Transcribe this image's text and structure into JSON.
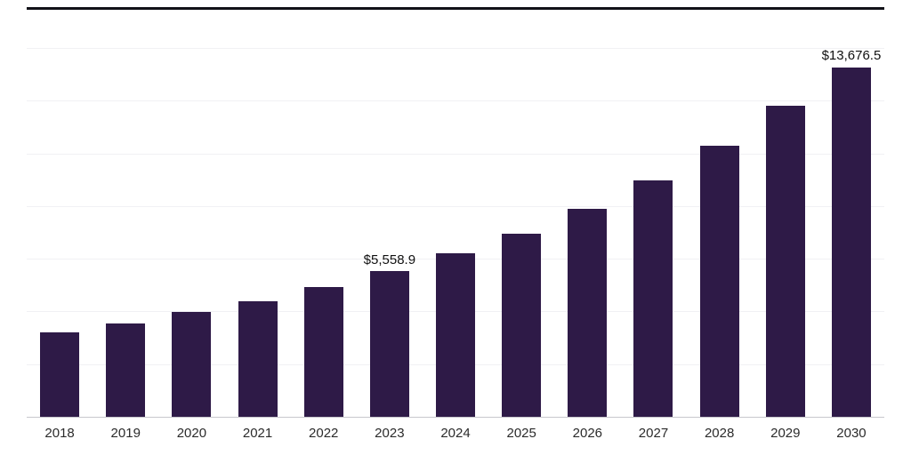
{
  "chart_data": {
    "type": "bar",
    "title": "",
    "xlabel": "",
    "ylabel": "",
    "categories": [
      "2018",
      "2019",
      "2020",
      "2021",
      "2022",
      "2023",
      "2024",
      "2025",
      "2026",
      "2027",
      "2028",
      "2029",
      "2030"
    ],
    "values": [
      3230,
      3570,
      4010,
      4430,
      4960,
      5558.9,
      6230,
      6980,
      7930,
      9020,
      10310,
      11840,
      13676.5
    ],
    "data_labels": [
      "",
      "",
      "",
      "",
      "",
      "$5,558.9",
      "",
      "",
      "",
      "",
      "",
      "",
      "$13,676.5"
    ],
    "ylim": [
      0,
      14000
    ],
    "gridline_step": 2000,
    "grid": "horizontal",
    "legend": "none",
    "bar_color": "#2e1a47",
    "gridline_color": "#f1f1f4",
    "axis_line_color": "#c7c7cc",
    "label_color": "#111111",
    "tick_label_color": "#2b2b2b"
  }
}
